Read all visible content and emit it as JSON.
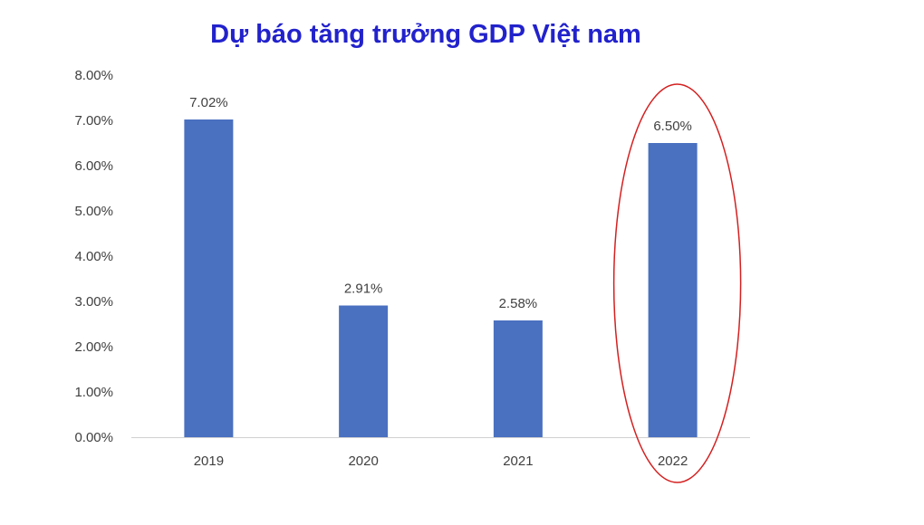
{
  "chart_data": {
    "type": "bar",
    "title": "Dự báo tăng trưởng GDP Việt nam",
    "xlabel": "",
    "ylabel": "",
    "categories": [
      "2019",
      "2020",
      "2021",
      "2022"
    ],
    "values": [
      7.02,
      2.91,
      2.58,
      6.5
    ],
    "data_labels": [
      "7.02%",
      "2.91%",
      "2.58%",
      "6.50%"
    ],
    "y_ticks": [
      "0.00%",
      "1.00%",
      "2.00%",
      "3.00%",
      "4.00%",
      "5.00%",
      "6.00%",
      "7.00%",
      "8.00%"
    ],
    "ylim": [
      0,
      8
    ],
    "grid": false,
    "legend": "none",
    "bar_color": "#4a70c0",
    "highlight": {
      "category": "2022",
      "shape": "ellipse",
      "color": "#d42020"
    }
  }
}
